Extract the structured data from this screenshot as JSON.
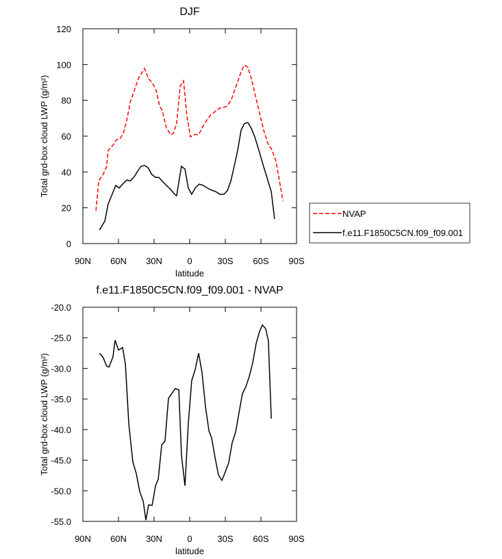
{
  "chart_data": [
    {
      "type": "line",
      "title": "DJF",
      "xlabel": "latitude",
      "ylabel": "Total grd-box cloud LWP (g/m²)",
      "xlim": [
        90,
        -90
      ],
      "xticks": [
        {
          "value": 90,
          "label": "90N"
        },
        {
          "value": 60,
          "label": "60N"
        },
        {
          "value": 30,
          "label": "30N"
        },
        0,
        {
          "value": -30,
          "label": "30S"
        },
        {
          "value": -60,
          "label": "60S"
        },
        {
          "value": -90,
          "label": "90S"
        }
      ],
      "ylim": [
        0,
        120
      ],
      "yticks": [
        0,
        20,
        40,
        60,
        80,
        100,
        120
      ],
      "legend": "right",
      "series": [
        {
          "name": "NVAP",
          "color": "#ff0000",
          "line_style": "dashed",
          "x": [
            79,
            76.7,
            73,
            70,
            68.7,
            64.6,
            61.7,
            58.8,
            56,
            53,
            50,
            46.7,
            42.7,
            38,
            34.6,
            31.7,
            28.3,
            25.4,
            23,
            19.6,
            16,
            13.8,
            11,
            8,
            5.2,
            2.3,
            -0.6,
            -4.6,
            -7.5,
            -11,
            -14.4,
            -17.9,
            -21.3,
            -24.8,
            -28.3,
            -31.7,
            -35.2,
            -39.2,
            -43.3,
            -46,
            -49,
            -52,
            -55.4,
            -58.8,
            -62.3,
            -65.8,
            -69,
            -72.7,
            -75.6,
            -78.5
          ],
          "values": [
            18.3,
            35,
            38.6,
            43,
            52,
            55,
            58,
            58.5,
            61.5,
            69,
            79,
            85.6,
            93,
            97.8,
            92,
            90,
            85.6,
            77,
            74,
            64.6,
            60.8,
            61.5,
            67,
            88,
            90.9,
            71,
            59.6,
            61,
            60.8,
            65.3,
            69,
            72,
            73.7,
            75.6,
            76,
            76.8,
            80.6,
            88,
            96,
            99.7,
            98.6,
            92,
            82.5,
            73,
            63.4,
            55.8,
            52.7,
            46,
            35,
            24
          ]
        },
        {
          "name": "f.e11.F1850C5CN.f09_f09.001",
          "color": "#000000",
          "line_style": "solid",
          "x": [
            76,
            71.5,
            68.7,
            66,
            62.3,
            59.4,
            56,
            53,
            50,
            46.7,
            43.8,
            41,
            38,
            35,
            32,
            28.8,
            26,
            23,
            19.6,
            16,
            12.7,
            11,
            7,
            4,
            1.2,
            -1.7,
            -4.6,
            -8,
            -11.5,
            -15,
            -18.5,
            -22,
            -25.4,
            -28.8,
            -31.7,
            -34.6,
            -37.5,
            -40.4,
            -43.3,
            -46,
            -49,
            -52,
            -54.8,
            -58.3,
            -61.7,
            -65.2,
            -68.7,
            -71.5
          ],
          "values": [
            7.6,
            12.6,
            22,
            26.4,
            32.5,
            31,
            33.6,
            35.5,
            35,
            37.4,
            40.5,
            43.2,
            43.6,
            42.4,
            38.6,
            37,
            37,
            34.8,
            32.5,
            30.2,
            27.5,
            26.7,
            43.2,
            41.6,
            31,
            27.5,
            31,
            33.2,
            32.5,
            31,
            29.8,
            29,
            27.5,
            27.5,
            29.5,
            34.8,
            43.2,
            52,
            63.4,
            66.9,
            67.7,
            64.2,
            59.6,
            52,
            44.3,
            36.7,
            29,
            13.8
          ]
        }
      ]
    },
    {
      "type": "line",
      "title": "f.e11.F1850C5CN.f09_f09.001 - NVAP",
      "xlabel": "latitude",
      "ylabel": "Total grd-box cloud LWP (g/m²)",
      "xlim": [
        90,
        -90
      ],
      "xticks": [
        {
          "value": 90,
          "label": "90N"
        },
        {
          "value": 60,
          "label": "60N"
        },
        {
          "value": 30,
          "label": "30N"
        },
        0,
        {
          "value": -30,
          "label": "30S"
        },
        {
          "value": -60,
          "label": "60S"
        },
        {
          "value": -90,
          "label": "90S"
        }
      ],
      "ylim": [
        -55,
        -20
      ],
      "yticks": [
        {
          "value": -55,
          "label": "-55.0"
        },
        {
          "value": -50,
          "label": "-50.0"
        },
        {
          "value": -45,
          "label": "-45.0"
        },
        {
          "value": -40,
          "label": "-40.0"
        },
        {
          "value": -35,
          "label": "-35.0"
        },
        {
          "value": -30,
          "label": "-30.0"
        },
        {
          "value": -25,
          "label": "-25.0"
        },
        {
          "value": -20,
          "label": "-20.0"
        }
      ],
      "series": [
        {
          "color": "#000000",
          "line_style": "solid",
          "x": [
            76,
            73,
            70,
            68,
            64.6,
            62.9,
            60,
            56.5,
            54.2,
            51.3,
            47.9,
            45,
            42.1,
            39.2,
            36.9,
            34.6,
            31.7,
            28.8,
            26.5,
            23.6,
            20.8,
            17.9,
            15,
            12.1,
            9.2,
            6.9,
            4,
            1.2,
            -1.7,
            -4.6,
            -7.5,
            -10.4,
            -13.3,
            -16.2,
            -18.5,
            -21.3,
            -24.2,
            -27.1,
            -30,
            -32.9,
            -35.8,
            -38.7,
            -41.5,
            -44.4,
            -47.3,
            -50.2,
            -53.1,
            -56,
            -58.8,
            -61.2,
            -64,
            -66.3,
            -68.7
          ],
          "values": [
            -27.5,
            -28.2,
            -29.6,
            -29.8,
            -28.1,
            -25.4,
            -27,
            -26.6,
            -29.3,
            -39.1,
            -45.3,
            -47.2,
            -50.1,
            -51.7,
            -54.8,
            -52.3,
            -52.4,
            -49.2,
            -48.1,
            -42.5,
            -41.9,
            -34.9,
            -34.1,
            -33.3,
            -33.5,
            -44.2,
            -49.2,
            -39.1,
            -32,
            -30.2,
            -27.5,
            -30.7,
            -36.3,
            -40.2,
            -41.4,
            -44.5,
            -47.4,
            -48.3,
            -46.9,
            -45.4,
            -42.1,
            -40.4,
            -37.3,
            -34.1,
            -33,
            -31.3,
            -29.1,
            -25.9,
            -24,
            -22.9,
            -23.5,
            -25.5,
            -38.2
          ]
        }
      ]
    }
  ]
}
